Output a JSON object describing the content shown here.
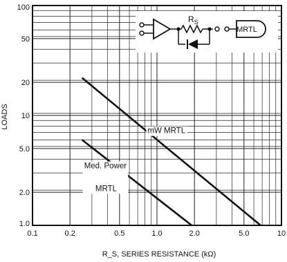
{
  "chart_data": {
    "type": "line",
    "xscale": "log",
    "yscale": "log",
    "xlim": [
      0.1,
      10
    ],
    "ylim": [
      1,
      100
    ],
    "xlabel": "R_S, SERIES RESISTANCE (kΩ)",
    "ylabel": "LOADS",
    "xticks": [
      {
        "v": 0.1,
        "label": "0.1"
      },
      {
        "v": 0.2,
        "label": "0.2"
      },
      {
        "v": 0.5,
        "label": "0.5"
      },
      {
        "v": 1.0,
        "label": "1.0"
      },
      {
        "v": 2.0,
        "label": "2.0"
      },
      {
        "v": 5.0,
        "label": "5.0"
      },
      {
        "v": 10,
        "label": "10"
      }
    ],
    "yticks": [
      {
        "v": 1,
        "label": "1.0"
      },
      {
        "v": 2,
        "label": "2.0"
      },
      {
        "v": 5,
        "label": "5.0"
      },
      {
        "v": 10,
        "label": "10"
      },
      {
        "v": 20,
        "label": "20"
      },
      {
        "v": 50,
        "label": "50"
      },
      {
        "v": 100,
        "label": "100"
      }
    ],
    "grid": true,
    "series": [
      {
        "name": "mW MRTL",
        "x": [
          0.25,
          6.8
        ],
        "y": [
          22,
          1.0
        ]
      },
      {
        "name": "Med. Power MRTL",
        "x": [
          0.25,
          1.9
        ],
        "y": [
          6.0,
          1.0
        ]
      }
    ],
    "annotations": [
      {
        "text": "mW MRTL",
        "series": 0
      },
      {
        "text": "Med. Power",
        "series": 1
      },
      {
        "text": "MRTL",
        "series": 1
      }
    ],
    "inset": {
      "resistor_label": "R",
      "resistor_subscript": "S",
      "gate_label": "MRTL"
    }
  }
}
